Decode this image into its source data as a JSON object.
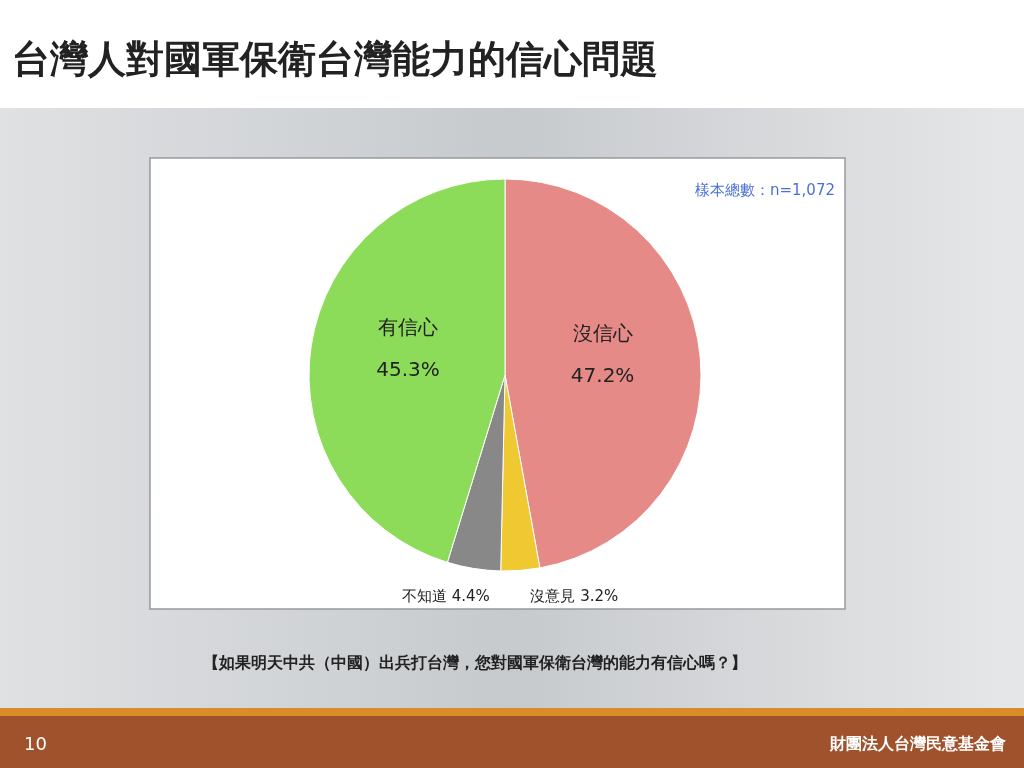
{
  "chart_data": {
    "type": "pie",
    "title": "台灣人對國軍保衛台灣能力的信心問題",
    "categories": [
      "沒信心",
      "沒意見",
      "不知道",
      "有信心"
    ],
    "values": [
      47.2,
      3.2,
      4.4,
      45.3
    ],
    "colors": [
      "#e58a87",
      "#f0c832",
      "#888888",
      "#8cdc5a"
    ],
    "annotations": [
      "樣本總數：n=1,072",
      "【如果明天中共（中國）出兵打台灣，您對國軍保衛台灣的能力有信心嗎？】",
      "10",
      "財團法人台灣民意基金會"
    ],
    "value_labels": [
      "47.2%",
      "3.2%",
      "4.4%",
      "45.3%"
    ]
  }
}
